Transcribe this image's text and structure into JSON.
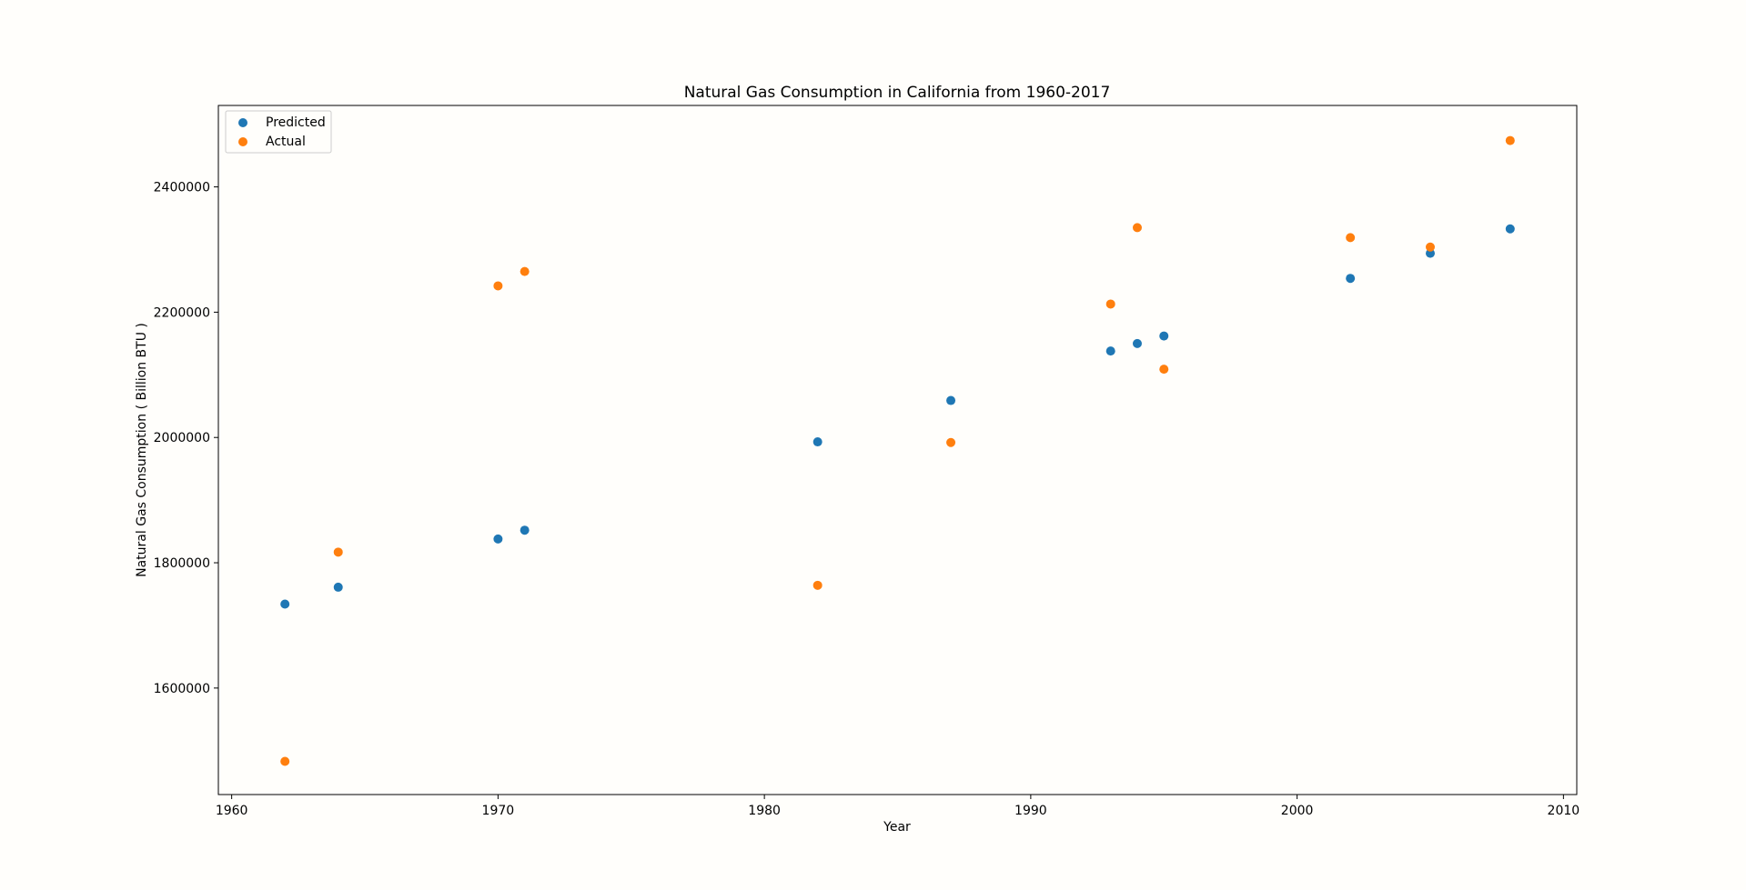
{
  "chart_data": {
    "type": "scatter",
    "title": "Natural Gas Consumption in California from 1960-2017",
    "xlabel": "Year",
    "ylabel": "Natural Gas Consumption ( Billion BTU )",
    "xlim": [
      1959.5,
      2010.5
    ],
    "ylim": [
      1430000,
      2530000
    ],
    "xticks": [
      1960,
      1970,
      1980,
      1990,
      2000,
      2010
    ],
    "yticks": [
      1600000,
      1800000,
      2000000,
      2200000,
      2400000
    ],
    "grid": false,
    "legend_position": "top-left",
    "series": [
      {
        "name": "Predicted",
        "color": "#1f77b4",
        "points": [
          [
            1962,
            1734000
          ],
          [
            1964,
            1761000
          ],
          [
            1970,
            1838000
          ],
          [
            1971,
            1852000
          ],
          [
            1982,
            1993000
          ],
          [
            1987,
            2059000
          ],
          [
            1993,
            2138000
          ],
          [
            1994,
            2150000
          ],
          [
            1995,
            2162000
          ],
          [
            2002,
            2254000
          ],
          [
            2005,
            2294000
          ],
          [
            2008,
            2333000
          ]
        ]
      },
      {
        "name": "Actual",
        "color": "#ff7f0e",
        "points": [
          [
            1962,
            1483000
          ],
          [
            1964,
            1817000
          ],
          [
            1970,
            2242000
          ],
          [
            1971,
            2265000
          ],
          [
            1982,
            1764000
          ],
          [
            1987,
            1992000
          ],
          [
            1993,
            2213000
          ],
          [
            1994,
            2335000
          ],
          [
            1995,
            2109000
          ],
          [
            2002,
            2319000
          ],
          [
            2005,
            2304000
          ],
          [
            2008,
            2474000
          ]
        ]
      }
    ]
  }
}
